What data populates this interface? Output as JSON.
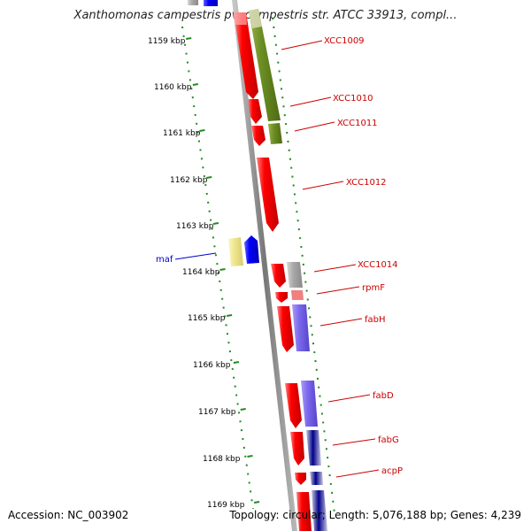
{
  "title": "Xanthomonas campestris pv. campestris str. ATCC 33913, compl...",
  "accession": "Accession: NC_003902",
  "topology": "Topology: circular; Length: 5,076,188 bp; Genes: 4,239",
  "ticks": [
    "1159 kbp",
    "1160 kbp",
    "1161 kbp",
    "1162 kbp",
    "1163 kbp",
    "1164 kbp",
    "1165 kbp",
    "1166 kbp",
    "1167 kbp",
    "1168 kbp",
    "1169 kbp"
  ],
  "genes": [
    {
      "label": "XCC1009",
      "color": "#cc0000"
    },
    {
      "label": "XCC1010",
      "color": "#cc0000"
    },
    {
      "label": "XCC1011",
      "color": "#cc0000"
    },
    {
      "label": "XCC1012",
      "color": "#cc0000"
    },
    {
      "label": "XCC1014",
      "color": "#cc0000"
    },
    {
      "label": "rpmF",
      "color": "#cc0000"
    },
    {
      "label": "fabH",
      "color": "#cc0000"
    },
    {
      "label": "fabD",
      "color": "#cc0000"
    },
    {
      "label": "fabG",
      "color": "#cc0000"
    },
    {
      "label": "acpP",
      "color": "#cc0000"
    },
    {
      "label": "maf",
      "color": "#0000cc"
    }
  ],
  "colors": {
    "forward_cds": "#ff0000",
    "reverse_cds": "#0000ff",
    "olive_feature": "#6b8e23",
    "purple_feature": "#7b68ee",
    "grey_feature": "#a9a9a9",
    "yellow_feature": "#f0e68c",
    "navy_feature": "#00008b",
    "backbone": "#888888",
    "tick_marks": "#228b22"
  }
}
